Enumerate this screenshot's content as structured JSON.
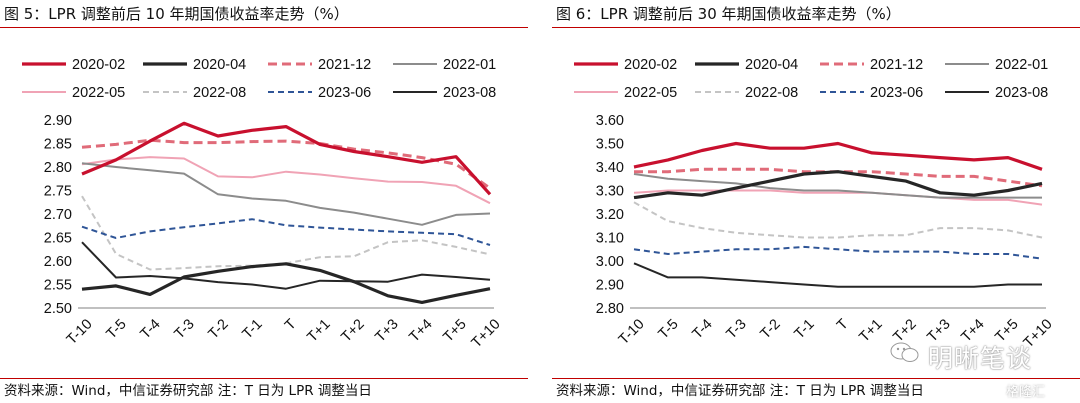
{
  "charts": [
    {
      "title": "图 5：LPR 调整前后 10 年期国债收益率走势（%）",
      "source": "资料来源：Wind，中信证券研究部  注：T 日为 LPR 调整当日"
    },
    {
      "title": "图 6：LPR 调整前后 30 年期国债收益率走势（%）",
      "source": "资料来源：Wind，中信证券研究部  注：T 日为 LPR 调整当日"
    }
  ],
  "watermark": {
    "text": "明晰笔谈",
    "sub": "格隆汇"
  },
  "series_styles": [
    {
      "color": "#c8102e",
      "dash": "",
      "width": 3.2
    },
    {
      "color": "#262626",
      "dash": "",
      "width": 3.2
    },
    {
      "color": "#e06b79",
      "dash": "9,5",
      "width": 3
    },
    {
      "color": "#8c8c8c",
      "dash": "",
      "width": 2
    },
    {
      "color": "#f0a3b5",
      "dash": "",
      "width": 2
    },
    {
      "color": "#c4c4c4",
      "dash": "6,4",
      "width": 2
    },
    {
      "color": "#2f5597",
      "dash": "6,4",
      "width": 2
    },
    {
      "color": "#262626",
      "dash": "",
      "width": 2
    }
  ],
  "chart_data": [
    {
      "type": "line",
      "categories": [
        "T-10",
        "T-5",
        "T-4",
        "T-3",
        "T-2",
        "T-1",
        "T",
        "T+1",
        "T+2",
        "T+3",
        "T+4",
        "T+5",
        "T+10"
      ],
      "ylim": [
        2.5,
        2.9
      ],
      "yticks": [
        "2.90",
        "2.85",
        "2.80",
        "2.75",
        "2.70",
        "2.65",
        "2.60",
        "2.55",
        "2.50"
      ],
      "legend_position": "top",
      "series": [
        {
          "name": "2020-02",
          "values": [
            2.785,
            2.815,
            2.855,
            2.893,
            2.866,
            2.878,
            2.886,
            2.848,
            2.833,
            2.822,
            2.81,
            2.822,
            2.742
          ]
        },
        {
          "name": "2020-04",
          "values": [
            2.54,
            2.547,
            2.529,
            2.566,
            2.578,
            2.588,
            2.594,
            2.58,
            2.556,
            2.526,
            2.512,
            2.527,
            2.541
          ]
        },
        {
          "name": "2021-12",
          "values": [
            2.842,
            2.848,
            2.857,
            2.852,
            2.852,
            2.854,
            2.855,
            2.85,
            2.838,
            2.83,
            2.82,
            2.806,
            2.755
          ]
        },
        {
          "name": "2022-01",
          "values": [
            2.808,
            2.8,
            2.793,
            2.786,
            2.742,
            2.733,
            2.728,
            2.713,
            2.703,
            2.69,
            2.677,
            2.698,
            2.701
          ]
        },
        {
          "name": "2022-05",
          "values": [
            2.806,
            2.816,
            2.821,
            2.818,
            2.78,
            2.778,
            2.79,
            2.784,
            2.776,
            2.769,
            2.768,
            2.76,
            2.723
          ]
        },
        {
          "name": "2022-08",
          "values": [
            2.738,
            2.615,
            2.582,
            2.585,
            2.589,
            2.59,
            2.595,
            2.608,
            2.61,
            2.64,
            2.644,
            2.63,
            2.614
          ]
        },
        {
          "name": "2023-06",
          "values": [
            2.673,
            2.649,
            2.663,
            2.672,
            2.68,
            2.689,
            2.676,
            2.671,
            2.667,
            2.663,
            2.66,
            2.657,
            2.634
          ]
        },
        {
          "name": "2023-08",
          "values": [
            2.64,
            2.565,
            2.568,
            2.563,
            2.555,
            2.55,
            2.541,
            2.558,
            2.557,
            2.556,
            2.571,
            2.566,
            2.56
          ]
        }
      ]
    },
    {
      "type": "line",
      "categories": [
        "T-10",
        "T-5",
        "T-4",
        "T-3",
        "T-2",
        "T-1",
        "T",
        "T+1",
        "T+2",
        "T+3",
        "T+4",
        "T+5",
        "T+10"
      ],
      "ylim": [
        2.8,
        3.6
      ],
      "yticks": [
        "3.60",
        "3.50",
        "3.40",
        "3.30",
        "3.20",
        "3.10",
        "3.00",
        "2.90",
        "2.80"
      ],
      "legend_position": "top",
      "series": [
        {
          "name": "2020-02",
          "values": [
            3.4,
            3.43,
            3.47,
            3.5,
            3.48,
            3.48,
            3.5,
            3.46,
            3.45,
            3.44,
            3.43,
            3.44,
            3.39
          ]
        },
        {
          "name": "2020-04",
          "values": [
            3.27,
            3.29,
            3.28,
            3.31,
            3.34,
            3.37,
            3.38,
            3.36,
            3.34,
            3.29,
            3.28,
            3.3,
            3.33
          ]
        },
        {
          "name": "2021-12",
          "values": [
            3.38,
            3.38,
            3.39,
            3.39,
            3.39,
            3.38,
            3.38,
            3.38,
            3.37,
            3.36,
            3.36,
            3.34,
            3.32
          ]
        },
        {
          "name": "2022-01",
          "values": [
            3.37,
            3.35,
            3.34,
            3.33,
            3.31,
            3.3,
            3.3,
            3.29,
            3.28,
            3.27,
            3.27,
            3.27,
            3.27
          ]
        },
        {
          "name": "2022-05",
          "values": [
            3.29,
            3.3,
            3.3,
            3.3,
            3.3,
            3.29,
            3.29,
            3.29,
            3.28,
            3.27,
            3.26,
            3.26,
            3.24
          ]
        },
        {
          "name": "2022-08",
          "values": [
            3.25,
            3.17,
            3.14,
            3.12,
            3.11,
            3.1,
            3.1,
            3.11,
            3.11,
            3.14,
            3.14,
            3.13,
            3.1
          ]
        },
        {
          "name": "2023-06",
          "values": [
            3.05,
            3.03,
            3.04,
            3.05,
            3.05,
            3.06,
            3.05,
            3.04,
            3.04,
            3.04,
            3.03,
            3.03,
            3.01
          ]
        },
        {
          "name": "2023-08",
          "values": [
            2.99,
            2.93,
            2.93,
            2.92,
            2.91,
            2.9,
            2.89,
            2.89,
            2.89,
            2.89,
            2.89,
            2.9,
            2.9
          ]
        }
      ]
    }
  ]
}
